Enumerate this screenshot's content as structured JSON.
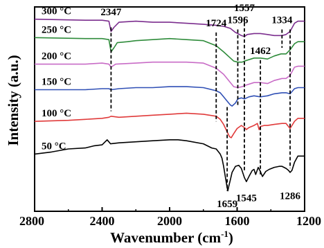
{
  "chart_data": {
    "type": "line",
    "xlabel": "Wavenumber (cm",
    "xlabel_sup": "-1",
    "xlabel_end": ")",
    "ylabel": "Intensity (a.u.)",
    "xlim": [
      2800,
      1200
    ],
    "x_reversed": true,
    "ylim": [
      0,
      100
    ],
    "xticks": [
      2800,
      2400,
      2000,
      1600,
      1200
    ],
    "xtick_labels": [
      "2800",
      "2400",
      "2000",
      "1600",
      "1200"
    ],
    "grid": false,
    "series": [
      {
        "name": "300 °C",
        "color": "#7b2d8e",
        "points": [
          [
            2800,
            94
          ],
          [
            2500,
            93.5
          ],
          [
            2400,
            93.5
          ],
          [
            2360,
            93
          ],
          [
            2347,
            88
          ],
          [
            2330,
            90
          ],
          [
            2300,
            92.5
          ],
          [
            2200,
            93
          ],
          [
            2100,
            92.5
          ],
          [
            2000,
            92.5
          ],
          [
            1900,
            92
          ],
          [
            1800,
            91.5
          ],
          [
            1724,
            91
          ],
          [
            1680,
            90.5
          ],
          [
            1640,
            89.5
          ],
          [
            1610,
            87.5
          ],
          [
            1596,
            87
          ],
          [
            1575,
            86
          ],
          [
            1557,
            85.5
          ],
          [
            1540,
            86.5
          ],
          [
            1500,
            87
          ],
          [
            1462,
            87
          ],
          [
            1420,
            86.5
          ],
          [
            1380,
            86
          ],
          [
            1334,
            86
          ],
          [
            1310,
            86.5
          ],
          [
            1286,
            88
          ],
          [
            1260,
            92
          ],
          [
            1240,
            93
          ],
          [
            1200,
            93
          ]
        ]
      },
      {
        "name": "250 °C",
        "color": "#2e8b3a",
        "points": [
          [
            2800,
            85
          ],
          [
            2500,
            84.5
          ],
          [
            2400,
            84.5
          ],
          [
            2360,
            84
          ],
          [
            2347,
            78
          ],
          [
            2330,
            80
          ],
          [
            2310,
            82.5
          ],
          [
            2250,
            83
          ],
          [
            2200,
            83.5
          ],
          [
            2100,
            84
          ],
          [
            2000,
            84.5
          ],
          [
            1900,
            84
          ],
          [
            1800,
            83.5
          ],
          [
            1724,
            81
          ],
          [
            1680,
            78
          ],
          [
            1640,
            75
          ],
          [
            1620,
            73.5
          ],
          [
            1596,
            73
          ],
          [
            1570,
            73
          ],
          [
            1557,
            73.5
          ],
          [
            1500,
            75
          ],
          [
            1462,
            75
          ],
          [
            1420,
            74.5
          ],
          [
            1380,
            76
          ],
          [
            1340,
            77
          ],
          [
            1310,
            77
          ],
          [
            1286,
            79
          ],
          [
            1260,
            82
          ],
          [
            1240,
            83
          ],
          [
            1200,
            83
          ]
        ]
      },
      {
        "name": "200 °C",
        "color": "#c86bc6",
        "points": [
          [
            2800,
            72
          ],
          [
            2500,
            72
          ],
          [
            2400,
            72.5
          ],
          [
            2360,
            72
          ],
          [
            2347,
            70.5
          ],
          [
            2320,
            72
          ],
          [
            2200,
            72.5
          ],
          [
            2100,
            73
          ],
          [
            2000,
            73
          ],
          [
            1900,
            73
          ],
          [
            1800,
            72.5
          ],
          [
            1724,
            70
          ],
          [
            1680,
            67
          ],
          [
            1640,
            63
          ],
          [
            1620,
            61
          ],
          [
            1596,
            60.5
          ],
          [
            1570,
            61
          ],
          [
            1557,
            61.5
          ],
          [
            1500,
            63
          ],
          [
            1462,
            63
          ],
          [
            1420,
            62.5
          ],
          [
            1380,
            64
          ],
          [
            1334,
            65
          ],
          [
            1310,
            65
          ],
          [
            1286,
            66.5
          ],
          [
            1260,
            70.5
          ],
          [
            1240,
            71
          ],
          [
            1200,
            71
          ]
        ]
      },
      {
        "name": "150 °C",
        "color": "#2f4fb5",
        "points": [
          [
            2800,
            59.5
          ],
          [
            2500,
            59.5
          ],
          [
            2400,
            60
          ],
          [
            2360,
            60
          ],
          [
            2347,
            59.5
          ],
          [
            2300,
            60
          ],
          [
            2200,
            60.5
          ],
          [
            2100,
            60.5
          ],
          [
            2000,
            61
          ],
          [
            1900,
            61
          ],
          [
            1800,
            60.5
          ],
          [
            1724,
            59
          ],
          [
            1700,
            58
          ],
          [
            1680,
            56
          ],
          [
            1660,
            54
          ],
          [
            1640,
            52
          ],
          [
            1630,
            51.5
          ],
          [
            1610,
            53
          ],
          [
            1596,
            55
          ],
          [
            1575,
            55.5
          ],
          [
            1557,
            55
          ],
          [
            1530,
            56
          ],
          [
            1500,
            56.5
          ],
          [
            1462,
            56
          ],
          [
            1420,
            56.5
          ],
          [
            1380,
            57.5
          ],
          [
            1334,
            58
          ],
          [
            1310,
            58
          ],
          [
            1286,
            57.5
          ],
          [
            1260,
            60
          ],
          [
            1240,
            60.5
          ],
          [
            1200,
            60.5
          ]
        ]
      },
      {
        "name": "100 °C",
        "color": "#e03a3a",
        "points": [
          [
            2800,
            44
          ],
          [
            2600,
            44.5
          ],
          [
            2500,
            45
          ],
          [
            2400,
            45.5
          ],
          [
            2360,
            46
          ],
          [
            2347,
            46.5
          ],
          [
            2300,
            46
          ],
          [
            2200,
            46.5
          ],
          [
            2100,
            47
          ],
          [
            2000,
            47.5
          ],
          [
            1900,
            48
          ],
          [
            1800,
            47.5
          ],
          [
            1724,
            46.5
          ],
          [
            1700,
            45
          ],
          [
            1680,
            42.5
          ],
          [
            1660,
            39
          ],
          [
            1645,
            36.5
          ],
          [
            1635,
            36
          ],
          [
            1620,
            38
          ],
          [
            1600,
            40.5
          ],
          [
            1575,
            42
          ],
          [
            1557,
            41
          ],
          [
            1545,
            40
          ],
          [
            1530,
            41
          ],
          [
            1500,
            42
          ],
          [
            1480,
            43
          ],
          [
            1470,
            40
          ],
          [
            1462,
            41.5
          ],
          [
            1440,
            42
          ],
          [
            1420,
            42
          ],
          [
            1380,
            42.5
          ],
          [
            1334,
            43
          ],
          [
            1310,
            43
          ],
          [
            1286,
            40.5
          ],
          [
            1260,
            44
          ],
          [
            1240,
            45.5
          ],
          [
            1200,
            45.5
          ]
        ]
      },
      {
        "name": "50 °C",
        "color": "#000000",
        "points": [
          [
            2800,
            28
          ],
          [
            2700,
            29
          ],
          [
            2600,
            30.5
          ],
          [
            2500,
            31
          ],
          [
            2450,
            32
          ],
          [
            2400,
            32.5
          ],
          [
            2370,
            35
          ],
          [
            2350,
            33
          ],
          [
            2300,
            33.5
          ],
          [
            2200,
            34
          ],
          [
            2100,
            34.5
          ],
          [
            2000,
            35
          ],
          [
            1950,
            35
          ],
          [
            1900,
            34.5
          ],
          [
            1800,
            33
          ],
          [
            1750,
            31
          ],
          [
            1724,
            30.5
          ],
          [
            1700,
            28
          ],
          [
            1690,
            26
          ],
          [
            1680,
            22
          ],
          [
            1670,
            17
          ],
          [
            1660,
            12
          ],
          [
            1655,
            10
          ],
          [
            1650,
            12
          ],
          [
            1640,
            15.5
          ],
          [
            1630,
            19
          ],
          [
            1610,
            22
          ],
          [
            1590,
            22.5
          ],
          [
            1575,
            21
          ],
          [
            1557,
            16.5
          ],
          [
            1545,
            14.5
          ],
          [
            1530,
            17
          ],
          [
            1510,
            20
          ],
          [
            1500,
            20.5
          ],
          [
            1490,
            18
          ],
          [
            1475,
            21.5
          ],
          [
            1462,
            19.5
          ],
          [
            1450,
            17
          ],
          [
            1430,
            19.5
          ],
          [
            1410,
            20.5
          ],
          [
            1380,
            21.5
          ],
          [
            1350,
            22
          ],
          [
            1334,
            22
          ],
          [
            1310,
            21
          ],
          [
            1295,
            20
          ],
          [
            1286,
            19
          ],
          [
            1275,
            20
          ],
          [
            1260,
            24
          ],
          [
            1240,
            27
          ],
          [
            1200,
            27
          ]
        ]
      }
    ],
    "annotations": [
      {
        "text": "2347",
        "x": 2347,
        "y_label": 96,
        "line_top": 90,
        "line_bottom": 49
      },
      {
        "text": "1724",
        "x": 1724,
        "y_label": 90.5,
        "line_top": 87.5,
        "line_bottom": 44
      },
      {
        "text": "1596",
        "x": 1596,
        "y_label": 92,
        "line_top": 89,
        "line_bottom": 52
      },
      {
        "text": "1557",
        "x": 1557,
        "y_label": 98,
        "line_top": 95,
        "line_bottom": 20
      },
      {
        "text": "1334",
        "x": 1334,
        "y_label": 92,
        "line_top": 89,
        "line_bottom": 80
      },
      {
        "text": "1462",
        "x": 1462,
        "y_label": 77,
        "line_top": 74,
        "line_bottom": 18
      },
      {
        "text": "1659",
        "x": 1659,
        "y_label": 2,
        "line_top": 51,
        "line_bottom": 10
      },
      {
        "text": "1545",
        "x": 1545,
        "y_label": 5,
        "line_top": null,
        "line_bottom": null
      },
      {
        "text": "1286",
        "x": 1286,
        "y_label": 6,
        "line_top": 89,
        "line_bottom": 21
      }
    ]
  }
}
